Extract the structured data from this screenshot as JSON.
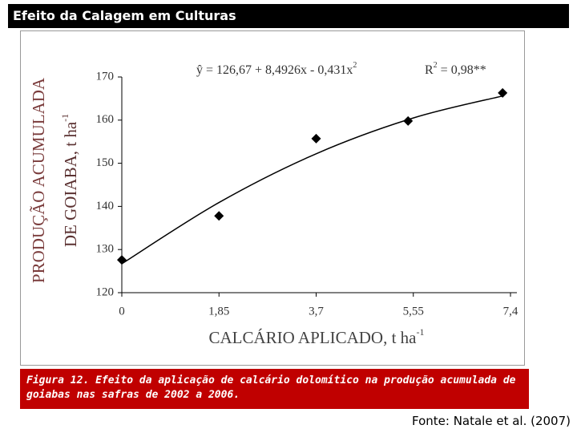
{
  "header": {
    "title": "Efeito da Calagem em Culturas"
  },
  "chart_data": {
    "type": "scatter",
    "ylabel": [
      "PRODUÇÃO ACUMULADA",
      "DE GOIABA, t ha",
      "-1"
    ],
    "xlabel": [
      "CALCÁRIO APLICADO, t ha",
      "-1"
    ],
    "annotations": [
      "ŷ  = 126,67 + 8,4926x - 0,431x",
      "2",
      "R",
      "2",
      " = 0,98**"
    ],
    "series": [
      {
        "color": "#000000",
        "x": [
          0,
          1.85,
          3.7,
          5.45,
          7.25
        ],
        "values": [
          127.6,
          137.8,
          155.7,
          159.8,
          166.3
        ]
      },
      {
        "type": "line",
        "color": "#000000",
        "x": [
          0,
          1.85,
          3.7,
          5.55,
          7.25
        ],
        "values": [
          126.7,
          140.9,
          152.2,
          160.5,
          165.6
        ]
      }
    ],
    "xlim": [
      0,
      7.4
    ],
    "ylim": [
      120,
      170
    ],
    "xticks": [
      0,
      {
        "value": 1.85,
        "label": "1,85"
      },
      {
        "value": 3.7,
        "label": "3,7"
      },
      {
        "value": 5.55,
        "label": "5,55"
      },
      {
        "value": 7.4,
        "label": "7,4"
      }
    ],
    "yticks": [
      120,
      130,
      140,
      150,
      160,
      170
    ]
  },
  "caption": "Figura 12. Efeito da aplicação de calcário dolomítico na produção acumulada de goiabas nas safras de 2002 a 2006.",
  "source": "Fonte: Natale et al. (2007)"
}
